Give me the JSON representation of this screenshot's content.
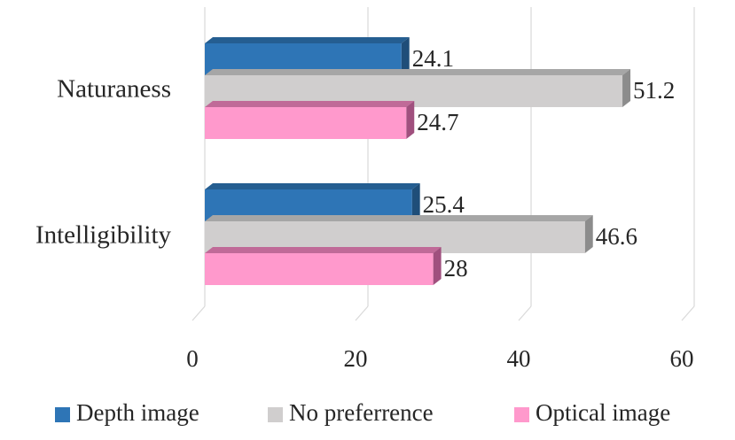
{
  "chart_data": {
    "type": "bar",
    "orientation": "horizontal",
    "style": "3d",
    "categories": [
      "Naturaness",
      "Intelligibility"
    ],
    "series": [
      {
        "name": "Depth image",
        "values": [
          24.1,
          25.4
        ],
        "color": "#2E75B6",
        "side_color": "#1F4E79",
        "top_color": "#255E91"
      },
      {
        "name": "No preferrence",
        "values": [
          51.2,
          46.6
        ],
        "color": "#D0CECE",
        "side_color": "#8C8C8C",
        "top_color": "#A6A6A6"
      },
      {
        "name": "Optical image",
        "values": [
          24.7,
          28
        ],
        "color": "#FF99CC",
        "side_color": "#A0507E",
        "top_color": "#C06A98"
      }
    ],
    "xlim": [
      0,
      60
    ],
    "xticks": [
      "0",
      "20",
      "40",
      "60"
    ],
    "data_labels": [
      [
        "24.1",
        "25.4"
      ],
      [
        "51.2",
        "46.6"
      ],
      [
        "24.7",
        "28"
      ]
    ],
    "grid": true,
    "legend": "bottom",
    "title": "",
    "xlabel": "",
    "ylabel": ""
  }
}
